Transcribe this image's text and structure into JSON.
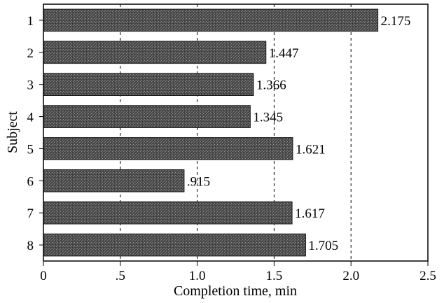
{
  "chart_data": {
    "type": "bar",
    "orientation": "horizontal",
    "title": "",
    "xlabel": "Completion time, min",
    "ylabel": "Subject",
    "categories": [
      "1",
      "2",
      "3",
      "4",
      "5",
      "6",
      "7",
      "8"
    ],
    "values": [
      2.175,
      1.447,
      1.366,
      1.345,
      1.621,
      0.915,
      1.617,
      1.705
    ],
    "data_labels": [
      "2.175",
      "1.447",
      "1.366",
      "1.345",
      "1.621",
      ".915",
      "1.617",
      "1.705"
    ],
    "xlim": [
      0,
      2.5
    ],
    "x_ticks": [
      0,
      0.5,
      1.0,
      1.5,
      2.0,
      2.5
    ],
    "x_tick_labels": [
      "0",
      ".5",
      "1.0",
      "1.5",
      "2.0",
      "2.5"
    ],
    "grid": "vertical dashed at 0.5, 1.0, 1.5, 2.0",
    "legend": "none",
    "bar_color": "#5a5a5a"
  }
}
